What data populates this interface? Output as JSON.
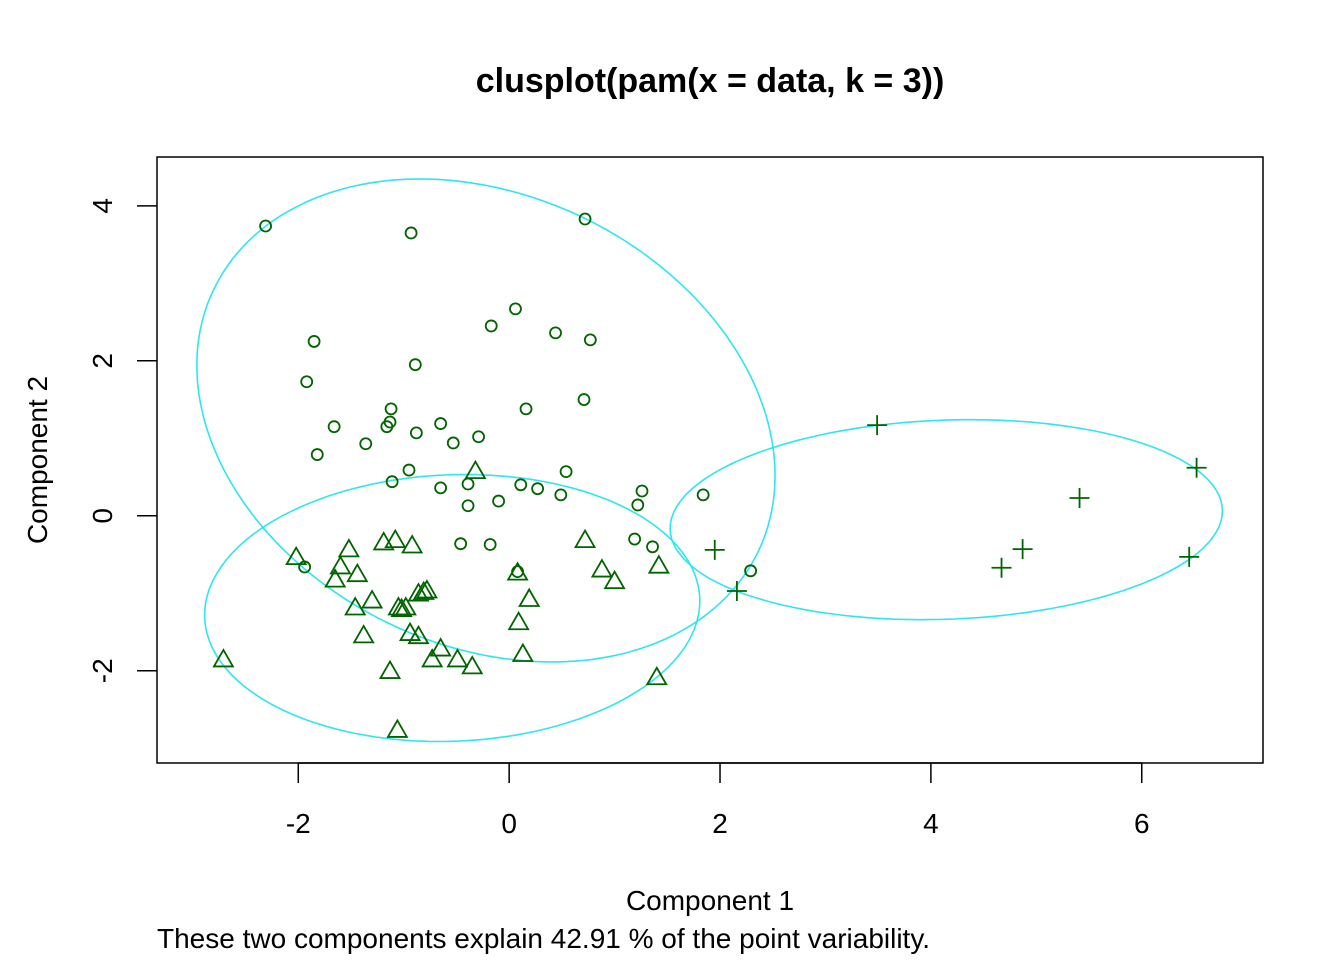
{
  "chart_data": {
    "type": "scatter",
    "title": "clusplot(pam(x = data, k = 3))",
    "xlabel": "Component 1",
    "ylabel": "Component 2",
    "subtitle": "These two components explain 42.91 % of the point variability.",
    "xlim": [
      -3.34,
      7.15
    ],
    "ylim": [
      -3.19,
      4.63
    ],
    "xticks": [
      -2,
      0,
      2,
      4,
      6
    ],
    "yticks": [
      -2,
      0,
      2,
      4
    ],
    "grid": false,
    "point_color": "#006400",
    "ellipse_color": "#2EE6EE",
    "series": [
      {
        "name": "cluster 1",
        "marker": "circle",
        "points": [
          [
            -2.31,
            3.74
          ],
          [
            -0.93,
            3.65
          ],
          [
            0.72,
            3.83
          ],
          [
            -1.85,
            2.25
          ],
          [
            -1.92,
            1.73
          ],
          [
            -0.89,
            1.95
          ],
          [
            -0.17,
            2.45
          ],
          [
            0.06,
            2.67
          ],
          [
            0.44,
            2.36
          ],
          [
            0.77,
            2.27
          ],
          [
            -1.12,
            1.38
          ],
          [
            -1.13,
            1.21
          ],
          [
            -1.66,
            1.15
          ],
          [
            -1.16,
            1.15
          ],
          [
            -1.36,
            0.93
          ],
          [
            -0.88,
            1.07
          ],
          [
            -0.65,
            1.19
          ],
          [
            -0.53,
            0.94
          ],
          [
            -0.29,
            1.02
          ],
          [
            -1.82,
            0.79
          ],
          [
            0.16,
            1.38
          ],
          [
            0.71,
            1.5
          ],
          [
            -0.95,
            0.59
          ],
          [
            -1.11,
            0.44
          ],
          [
            -0.65,
            0.36
          ],
          [
            -0.39,
            0.41
          ],
          [
            -0.39,
            0.13
          ],
          [
            -0.1,
            0.19
          ],
          [
            0.11,
            0.4
          ],
          [
            0.27,
            0.35
          ],
          [
            0.49,
            0.27
          ],
          [
            0.54,
            0.57
          ],
          [
            1.26,
            0.32
          ],
          [
            1.22,
            0.14
          ],
          [
            1.84,
            0.27
          ],
          [
            -0.46,
            -0.36
          ],
          [
            -0.18,
            -0.37
          ],
          [
            1.19,
            -0.3
          ],
          [
            1.36,
            -0.4
          ],
          [
            0.08,
            -0.72
          ],
          [
            2.29,
            -0.71
          ],
          [
            -1.94,
            -0.66
          ]
        ],
        "ellipse": {
          "center": [
            -0.22,
            1.23
          ],
          "cov": [
            [
              7.518,
              -1.951
            ],
            [
              -1.951,
              9.71
            ]
          ]
        }
      },
      {
        "name": "cluster 2",
        "marker": "triangle",
        "points": [
          [
            -0.32,
            0.57
          ],
          [
            -2.02,
            -0.54
          ],
          [
            -1.52,
            -0.44
          ],
          [
            -1.6,
            -0.66
          ],
          [
            -1.44,
            -0.76
          ],
          [
            -1.65,
            -0.83
          ],
          [
            -1.19,
            -0.35
          ],
          [
            -1.08,
            -0.32
          ],
          [
            -0.92,
            -0.39
          ],
          [
            -1.3,
            -1.1
          ],
          [
            -1.46,
            -1.19
          ],
          [
            -1.05,
            -1.19
          ],
          [
            -0.98,
            -1.19
          ],
          [
            -1.02,
            -1.21
          ],
          [
            -0.78,
            -0.97
          ],
          [
            -0.86,
            -1.01
          ],
          [
            -0.81,
            -0.99
          ],
          [
            -0.94,
            -1.52
          ],
          [
            -0.86,
            -1.56
          ],
          [
            -1.38,
            -1.55
          ],
          [
            -1.13,
            -2.01
          ],
          [
            -1.06,
            -2.77
          ],
          [
            -2.71,
            -1.86
          ],
          [
            -0.73,
            -1.86
          ],
          [
            -0.65,
            -1.72
          ],
          [
            -0.49,
            -1.86
          ],
          [
            -0.35,
            -1.95
          ],
          [
            0.08,
            -0.74
          ],
          [
            0.19,
            -1.08
          ],
          [
            0.09,
            -1.38
          ],
          [
            0.13,
            -1.79
          ],
          [
            0.72,
            -0.32
          ],
          [
            0.88,
            -0.7
          ],
          [
            1.0,
            -0.85
          ],
          [
            1.42,
            -0.65
          ],
          [
            1.4,
            -2.09
          ]
        ],
        "ellipse": {
          "center": [
            -0.54,
            -1.19
          ],
          "cov": [
            [
              5.514,
              0.2125
            ],
            [
              0.2125,
              2.967
            ]
          ]
        }
      },
      {
        "name": "cluster 3",
        "marker": "plus",
        "points": [
          [
            3.49,
            1.17
          ],
          [
            6.52,
            0.62
          ],
          [
            5.41,
            0.23
          ],
          [
            1.95,
            -0.44
          ],
          [
            4.87,
            -0.43
          ],
          [
            4.67,
            -0.67
          ],
          [
            6.45,
            -0.53
          ],
          [
            2.16,
            -0.97
          ]
        ],
        "ellipse": {
          "center": [
            4.146,
            -0.05
          ],
          "cov": [
            [
              6.857,
              0.294
            ],
            [
              0.294,
              1.665
            ]
          ]
        }
      }
    ]
  }
}
